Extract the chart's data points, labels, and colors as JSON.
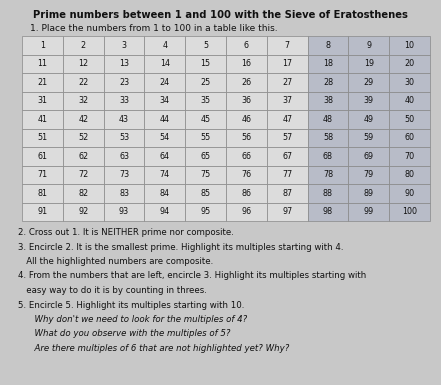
{
  "title": "Prime numbers between 1 and 100 with the Sieve of Eratosthenes",
  "subtitle": "1. Place the numbers from 1 to 100 in a table like this.",
  "rows": 10,
  "cols": 10,
  "cell_color_light": "#dcdcdc",
  "cell_color_dark": "#b8bcc8",
  "table_border": "#888888",
  "body_text": [
    "2. Cross out 1. It is NEITHER prime nor composite.",
    "3. Encircle 2. It is the smallest prime. Highlight its multiples starting with 4.",
    "   All the highlighted numbers are composite.",
    "4. From the numbers that are left, encircle 3. Highlight its multiples starting with",
    "   easy way to do it is by counting in threes.",
    "5. Encircle 5. Highlight its multiples starting with 10.",
    "      Why don't we need to look for the multiples of 4?",
    "      What do you observe with the multiples of 5?",
    "      Are there multiples of 6 that are not highlighted yet? Why?"
  ],
  "italic_lines": [
    6,
    7,
    8
  ],
  "fig_bg": "#c8c8c8",
  "text_color": "#111111",
  "title_fontsize": 7.2,
  "subtitle_fontsize": 6.5,
  "cell_fontsize": 5.8,
  "body_fontsize": 6.2
}
